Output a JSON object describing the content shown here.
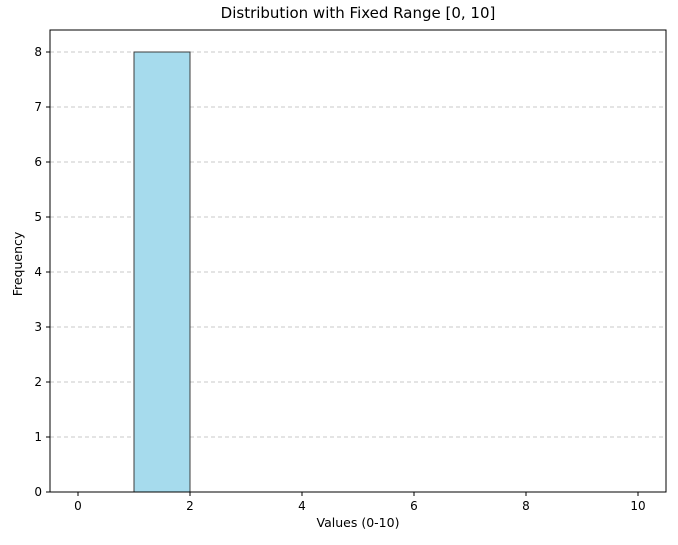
{
  "chart_data": {
    "type": "bar",
    "title": "Distribution with Fixed Range [0, 10]",
    "xlabel": "Values (0-10)",
    "ylabel": "Frequency",
    "xlim": [
      -0.5,
      10.5
    ],
    "ylim": [
      0,
      8.4
    ],
    "x_ticks": [
      0,
      2,
      4,
      6,
      8,
      10
    ],
    "y_ticks": [
      0,
      1,
      2,
      3,
      4,
      5,
      6,
      7,
      8
    ],
    "bins": [
      {
        "start": 0,
        "end": 1,
        "value": 0
      },
      {
        "start": 1,
        "end": 2,
        "value": 8
      },
      {
        "start": 2,
        "end": 3,
        "value": 0
      },
      {
        "start": 3,
        "end": 4,
        "value": 0
      },
      {
        "start": 4,
        "end": 5,
        "value": 0
      },
      {
        "start": 5,
        "end": 6,
        "value": 0
      },
      {
        "start": 6,
        "end": 7,
        "value": 0
      },
      {
        "start": 7,
        "end": 8,
        "value": 0
      },
      {
        "start": 8,
        "end": 9,
        "value": 0
      },
      {
        "start": 9,
        "end": 10,
        "value": 0
      }
    ],
    "bar_color": "#a6dbed",
    "edge_color": "#3c3c3c",
    "grid": {
      "axis": "y",
      "style": "dashed",
      "color": "#c8c8c8"
    }
  }
}
